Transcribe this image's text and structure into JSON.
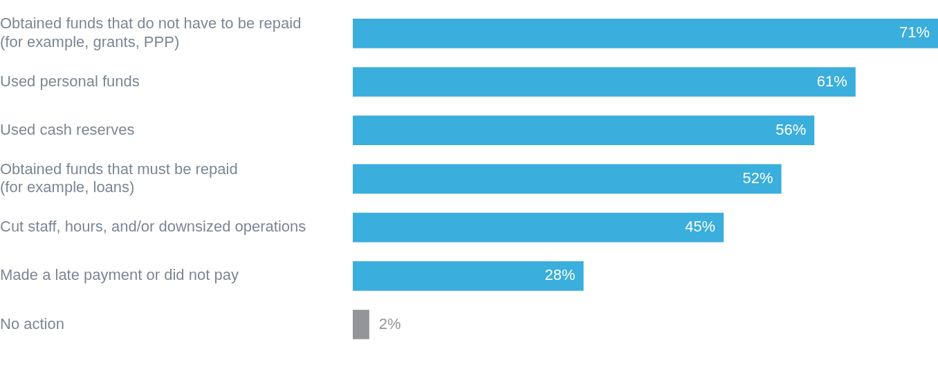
{
  "chart_data": {
    "type": "bar",
    "orientation": "horizontal",
    "categories": [
      "Obtained funds that do not have to be repaid\n(for example, grants, PPP)",
      "Used personal funds",
      "Used cash reserves",
      "Obtained funds that must be repaid\n(for example, loans)",
      "Cut staff, hours, and/or downsized operations",
      "Made a late payment or did not pay",
      "No action"
    ],
    "values": [
      71,
      61,
      56,
      52,
      45,
      28,
      2
    ],
    "value_labels": [
      "71%",
      "61%",
      "56%",
      "52%",
      "45%",
      "28%",
      "2%"
    ],
    "colors": [
      "#3aaedc",
      "#3aaedc",
      "#3aaedc",
      "#3aaedc",
      "#3aaedc",
      "#3aaedc",
      "#939598"
    ],
    "legend": false
  }
}
